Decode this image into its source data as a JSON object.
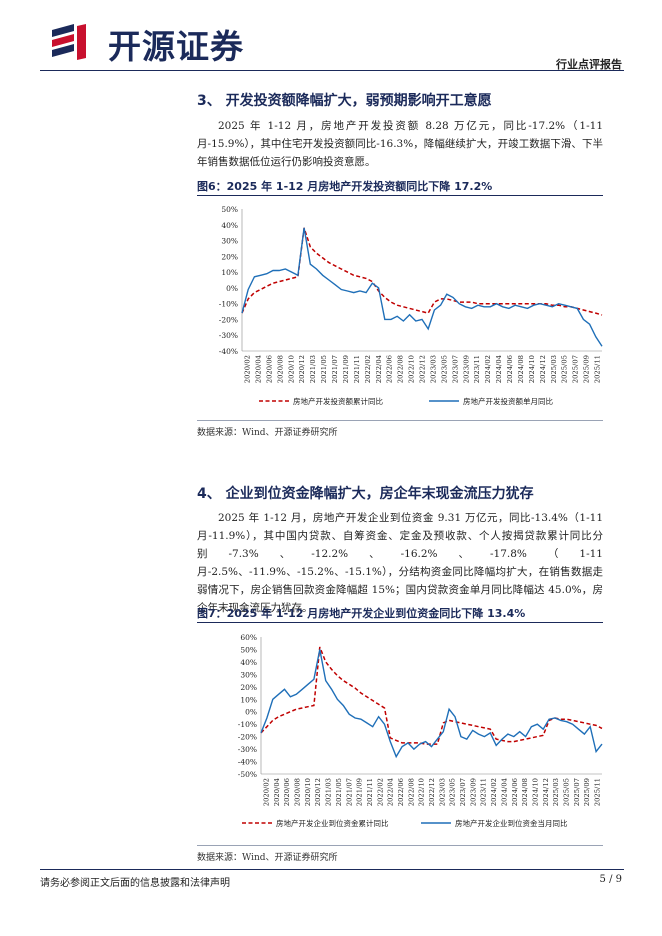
{
  "header": {
    "logo_text": "开源证券",
    "report_type": "行业点评报告",
    "logo_icon": "kaiyuan-logo-icon"
  },
  "section3": {
    "title": "3、 开发投资额降幅扩大，弱预期影响开工意愿",
    "paragraph": "2025 年 1-12 月，房地产开发投资额 8.28 万亿元，同比-17.2%（1-11 月-15.9%），其中住宅开发投资额同比-16.3%，降幅继续扩大，开竣工数据下滑、下半年销售数据低位运行仍影响投资意愿。"
  },
  "figure6": {
    "title": "图6：2025 年 1-12 月房地产开发投资额同比下降 17.2%",
    "source": "数据来源：Wind、开源证券研究所"
  },
  "section4": {
    "title": "4、 企业到位资金降幅扩大，房企年末现金流压力犹存",
    "paragraph": "2025 年 1-12 月，房地产开发企业到位资金 9.31 万亿元，同比-13.4%（1-11 月-11.9%），其中国内贷款、自筹资金、定金及预收款、个人按揭贷款累计同比分别-7.3%、-12.2%、-16.2%、-17.8%（1-11 月-2.5%、-11.9%、-15.2%、-15.1%），分结构资金同比降幅均扩大，在销售数据走弱情况下，房企销售回款资金降幅超 15%；国内贷款资金单月同比降幅达 45.0%，房企年末现金流压力犹存。"
  },
  "figure7": {
    "title": "图7：2025 年 1-12 月房地产开发企业到位资金同比下降 13.4%",
    "source": "数据来源：Wind、开源证券研究所"
  },
  "footer": {
    "disclaimer": "请务必参阅正文后面的信息披露和法律声明",
    "page": "5 / 9"
  },
  "chart_data": [
    {
      "type": "line",
      "x_tick_labels": [
        "2020/02",
        "2020/04",
        "2020/06",
        "2020/08",
        "2020/10",
        "2020/12",
        "2021/03",
        "2021/05",
        "2021/07",
        "2021/09",
        "2021/11",
        "2022/02",
        "2022/04",
        "2022/06",
        "2022/08",
        "2022/10",
        "2022/12",
        "2023/03",
        "2023/05",
        "2023/07",
        "2023/09",
        "2023/11",
        "2024/02",
        "2024/04",
        "2024/06",
        "2024/08",
        "2024/10",
        "2024/12",
        "2025/03",
        "2025/05",
        "2025/07",
        "2025/09",
        "2025/11"
      ],
      "y_tick_labels": [
        "50%",
        "40%",
        "30%",
        "20%",
        "10%",
        "0%",
        "-10%",
        "-20%",
        "-30%",
        "-40%"
      ],
      "ylim": [
        -40,
        50
      ],
      "series": [
        {
          "name": "房地产开发投资额累计同比",
          "color": "#c00000",
          "style": "dashed",
          "values": [
            -16,
            -7,
            -3,
            -1,
            1,
            3,
            4,
            5,
            6,
            7,
            38,
            26,
            22,
            19,
            16,
            14,
            12,
            10,
            8,
            7,
            6,
            4,
            -2,
            -6,
            -9,
            -11,
            -12,
            -13,
            -14,
            -15,
            -16,
            -9,
            -7,
            -7,
            -8,
            -9,
            -9,
            -9,
            -10,
            -10,
            -10,
            -10,
            -10,
            -10,
            -10,
            -10,
            -10,
            -10,
            -10,
            -10,
            -11,
            -11,
            -12,
            -12,
            -13,
            -14,
            -15,
            -16,
            -17.2
          ]
        },
        {
          "name": "房地产开发投资额单月同比",
          "color": "#1f6fb8",
          "style": "solid",
          "values": [
            -16,
            -1,
            7,
            8,
            9,
            11,
            11,
            12,
            10,
            8,
            38,
            15,
            12,
            8,
            5,
            2,
            -1,
            -2,
            -3,
            -2,
            -3,
            3,
            0,
            -20,
            -20,
            -18,
            -21,
            -17,
            -21,
            -20,
            -26,
            -14,
            -11,
            -4,
            -6,
            -10,
            -12,
            -13,
            -11,
            -12,
            -12,
            -10,
            -12,
            -13,
            -11,
            -12,
            -13,
            -11,
            -10,
            -11,
            -12,
            -10,
            -11,
            -12,
            -13,
            -20,
            -23,
            -31,
            -37
          ]
        }
      ]
    },
    {
      "type": "line",
      "x_tick_labels": [
        "2020/02",
        "2020/04",
        "2020/06",
        "2020/08",
        "2020/10",
        "2020/12",
        "2021/03",
        "2021/05",
        "2021/07",
        "2021/09",
        "2021/11",
        "2022/02",
        "2022/04",
        "2022/06",
        "2022/08",
        "2022/10",
        "2022/12",
        "2023/03",
        "2023/05",
        "2023/07",
        "2023/09",
        "2023/11",
        "2024/02",
        "2024/04",
        "2024/06",
        "2024/08",
        "2024/10",
        "2024/12",
        "2025/03",
        "2025/05",
        "2025/07",
        "2025/09",
        "2025/11"
      ],
      "y_tick_labels": [
        "60%",
        "50%",
        "40%",
        "30%",
        "20%",
        "10%",
        "0%",
        "-10%",
        "-20%",
        "-30%",
        "-40%",
        "-50%"
      ],
      "ylim": [
        -50,
        60
      ],
      "series": [
        {
          "name": "房地产开发企业到位资金累计同比",
          "color": "#c00000",
          "style": "dashed",
          "values": [
            -17,
            -12,
            -7,
            -4,
            -2,
            0,
            2,
            3,
            4,
            5,
            52,
            40,
            34,
            29,
            25,
            22,
            19,
            15,
            12,
            9,
            6,
            3,
            -21,
            -23,
            -25,
            -25,
            -25,
            -25,
            -26,
            -26,
            -26,
            -9,
            -7,
            -8,
            -9,
            -10,
            -11,
            -12,
            -13,
            -14,
            -22,
            -23,
            -24,
            -24,
            -23,
            -22,
            -21,
            -20,
            -19,
            -7,
            -5,
            -6,
            -6,
            -7,
            -8,
            -9,
            -10,
            -11,
            -13.4
          ]
        },
        {
          "name": "房地产开发企业到位资金当月同比",
          "color": "#1f6fb8",
          "style": "solid",
          "values": [
            -17,
            -5,
            10,
            14,
            18,
            12,
            14,
            18,
            22,
            26,
            50,
            25,
            18,
            10,
            5,
            -2,
            -5,
            -6,
            -9,
            -12,
            -4,
            -10,
            -24,
            -36,
            -28,
            -25,
            -30,
            -26,
            -24,
            -28,
            -22,
            -16,
            2,
            -4,
            -20,
            -22,
            -15,
            -18,
            -20,
            -17,
            -27,
            -22,
            -18,
            -20,
            -16,
            -20,
            -12,
            -10,
            -14,
            -6,
            -5,
            -7,
            -8,
            -10,
            -14,
            -18,
            -12,
            -32,
            -26
          ]
        }
      ]
    }
  ]
}
